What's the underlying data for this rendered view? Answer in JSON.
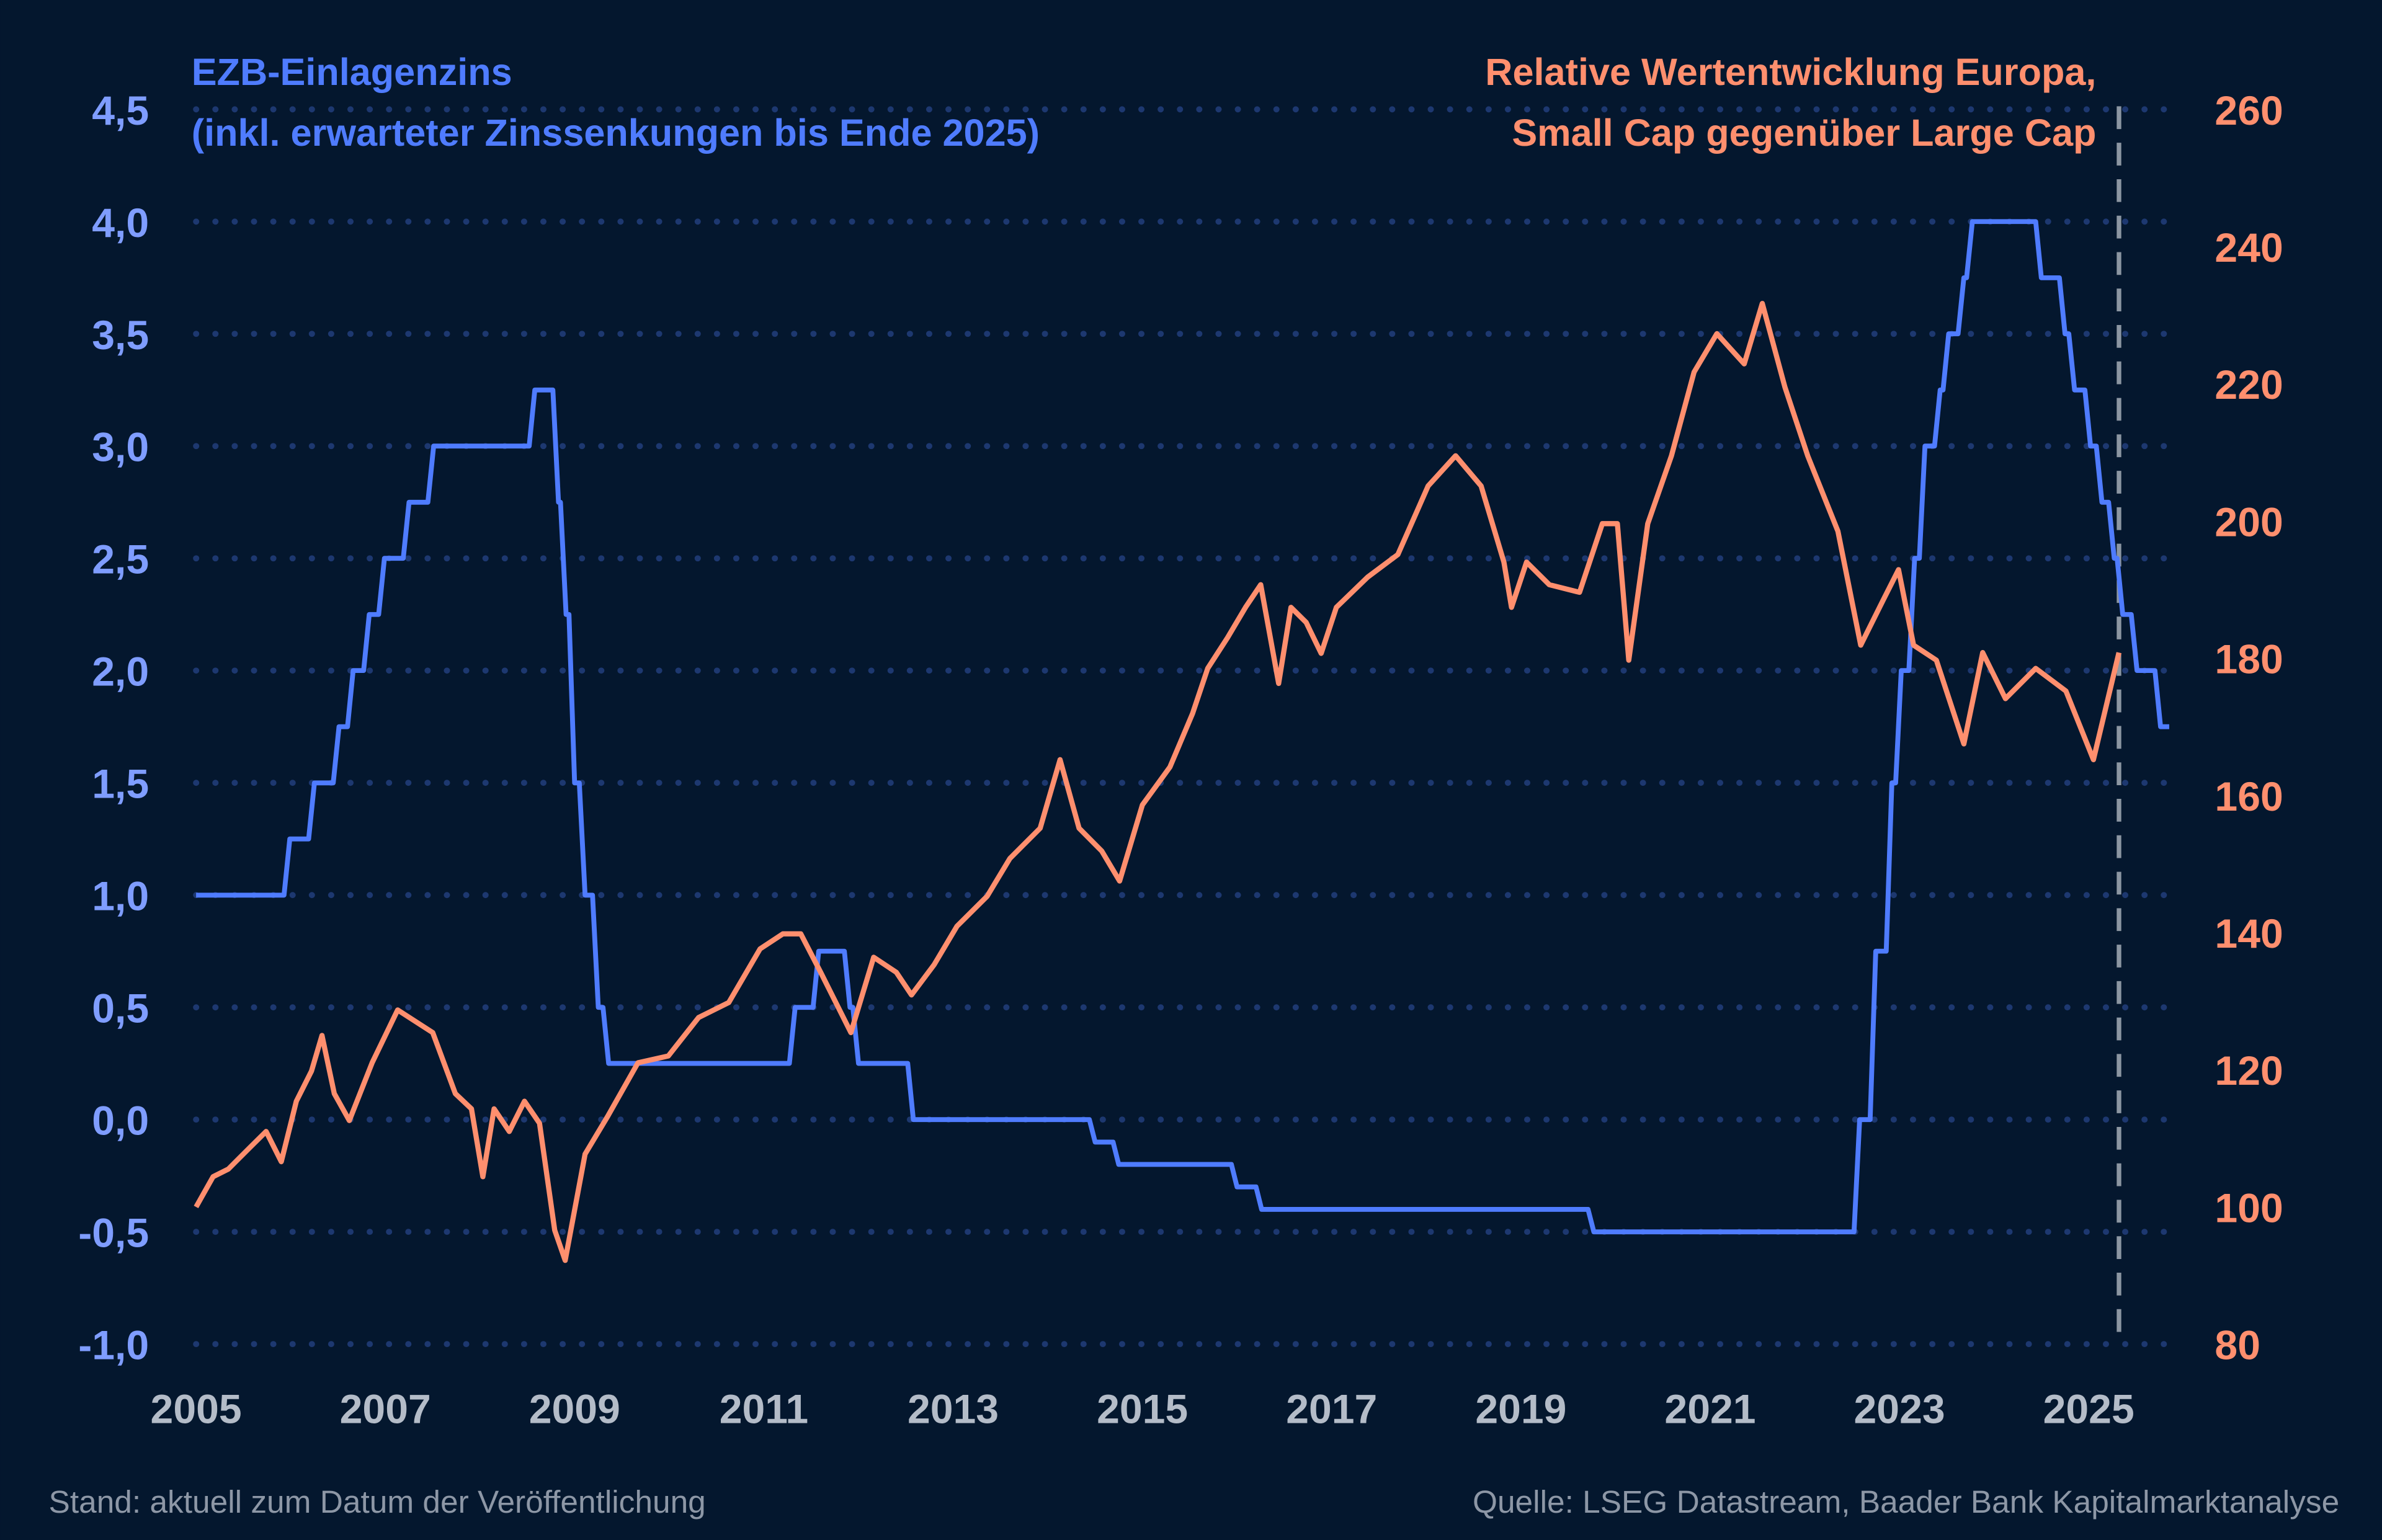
{
  "chart_data": {
    "type": "line",
    "title_left": [
      "EZB-Einlagenzins",
      "(inkl. erwarteter Zinssenkungen bis Ende 2025)"
    ],
    "title_right": [
      "Relative Wertentwicklung Europa,",
      "Small Cap gegenüber Large Cap"
    ],
    "x_ticks": [
      "2005",
      "2007",
      "2009",
      "2011",
      "2013",
      "2015",
      "2017",
      "2019",
      "2021",
      "2023",
      "2025"
    ],
    "xlim": [
      2005,
      2025.9
    ],
    "y_left": {
      "ticks": [
        "4,5",
        "4,0",
        "3,5",
        "3,0",
        "2,5",
        "2,0",
        "1,5",
        "1,0",
        "0,5",
        "0,0",
        "-0,5",
        "-1,0"
      ],
      "lim": [
        -1.0,
        4.5
      ]
    },
    "y_right": {
      "ticks": [
        "260",
        "240",
        "220",
        "200",
        "180",
        "160",
        "140",
        "120",
        "100",
        "80"
      ],
      "lim": [
        80,
        260
      ]
    },
    "grid": "dotted horizontal",
    "forecast_marker_x": 2025.32,
    "colors": {
      "rate": "#4f7cff",
      "relative": "#ff8f6e",
      "background": "#04172e",
      "marker": "#8c96a2"
    },
    "series": [
      {
        "name": "EZB-Einlagenzins",
        "axis": "left",
        "start": [
          2005.0,
          1.0
        ],
        "steps": [
          [
            2005.93,
            1.25
          ],
          [
            2006.19,
            1.5
          ],
          [
            2006.45,
            1.75
          ],
          [
            2006.6,
            2.0
          ],
          [
            2006.77,
            2.25
          ],
          [
            2006.93,
            2.5
          ],
          [
            2007.19,
            2.75
          ],
          [
            2007.45,
            3.0
          ],
          [
            2008.52,
            3.25
          ],
          [
            2008.77,
            2.75
          ],
          [
            2008.85,
            2.25
          ],
          [
            2008.94,
            1.5
          ],
          [
            2009.05,
            1.0
          ],
          [
            2009.19,
            0.5
          ],
          [
            2009.3,
            0.25
          ],
          [
            2011.27,
            0.5
          ],
          [
            2011.52,
            0.75
          ],
          [
            2011.85,
            0.5
          ],
          [
            2011.94,
            0.25
          ],
          [
            2012.52,
            0.0
          ],
          [
            2014.44,
            -0.1
          ],
          [
            2014.69,
            -0.2
          ],
          [
            2015.94,
            -0.3
          ],
          [
            2016.2,
            -0.4
          ],
          [
            2019.71,
            -0.5
          ],
          [
            2022.52,
            0.0
          ],
          [
            2022.69,
            0.75
          ],
          [
            2022.86,
            1.5
          ],
          [
            2022.96,
            2.0
          ],
          [
            2023.1,
            2.5
          ],
          [
            2023.21,
            3.0
          ],
          [
            2023.37,
            3.25
          ],
          [
            2023.46,
            3.5
          ],
          [
            2023.62,
            3.75
          ],
          [
            2023.71,
            4.0
          ],
          [
            2024.44,
            3.75
          ],
          [
            2024.69,
            3.5
          ],
          [
            2024.79,
            3.25
          ],
          [
            2024.96,
            3.0
          ],
          [
            2025.08,
            2.75
          ],
          [
            2025.21,
            2.5
          ],
          [
            2025.3,
            2.25
          ],
          [
            2025.45,
            2.0
          ],
          [
            2025.7,
            1.75
          ]
        ],
        "end": [
          2025.85,
          1.75
        ]
      },
      {
        "name": "Relative Wertentwicklung Europa, Small Cap gegenüber Large Cap",
        "axis": "right",
        "points": [
          [
            2005.0,
            100
          ],
          [
            2005.18,
            104.4
          ],
          [
            2005.34,
            105.5
          ],
          [
            2005.58,
            108.8
          ],
          [
            2005.74,
            111
          ],
          [
            2005.9,
            106.6
          ],
          [
            2006.06,
            115.4
          ],
          [
            2006.22,
            119.8
          ],
          [
            2006.33,
            125
          ],
          [
            2006.46,
            116.5
          ],
          [
            2006.62,
            112.6
          ],
          [
            2006.86,
            121
          ],
          [
            2007.13,
            128.7
          ],
          [
            2007.5,
            125.4
          ],
          [
            2007.74,
            116.5
          ],
          [
            2007.91,
            114.3
          ],
          [
            2008.03,
            104.4
          ],
          [
            2008.15,
            114.3
          ],
          [
            2008.31,
            111
          ],
          [
            2008.47,
            115.4
          ],
          [
            2008.63,
            112.2
          ],
          [
            2008.79,
            96.6
          ],
          [
            2008.9,
            92.2
          ],
          [
            2009.11,
            107.7
          ],
          [
            2009.35,
            113.2
          ],
          [
            2009.67,
            121
          ],
          [
            2009.99,
            122
          ],
          [
            2010.31,
            127.6
          ],
          [
            2010.63,
            129.8
          ],
          [
            2010.96,
            137.6
          ],
          [
            2011.2,
            139.8
          ],
          [
            2011.39,
            139.8
          ],
          [
            2011.6,
            134.2
          ],
          [
            2011.92,
            125.4
          ],
          [
            2012.16,
            136.4
          ],
          [
            2012.4,
            134.2
          ],
          [
            2012.56,
            130.9
          ],
          [
            2012.8,
            135.3
          ],
          [
            2013.04,
            140.9
          ],
          [
            2013.36,
            145.3
          ],
          [
            2013.6,
            150.8
          ],
          [
            2013.92,
            155.2
          ],
          [
            2014.13,
            165.2
          ],
          [
            2014.33,
            155.2
          ],
          [
            2014.57,
            151.9
          ],
          [
            2014.76,
            147.5
          ],
          [
            2015.0,
            158.6
          ],
          [
            2015.29,
            164.1
          ],
          [
            2015.53,
            171.9
          ],
          [
            2015.69,
            178.5
          ],
          [
            2015.9,
            183
          ],
          [
            2016.09,
            187.4
          ],
          [
            2016.25,
            190.7
          ],
          [
            2016.44,
            176.3
          ],
          [
            2016.57,
            187.4
          ],
          [
            2016.73,
            185.2
          ],
          [
            2016.89,
            180.7
          ],
          [
            2017.05,
            187.4
          ],
          [
            2017.38,
            191.8
          ],
          [
            2017.7,
            195.1
          ],
          [
            2018.02,
            205.1
          ],
          [
            2018.31,
            209.5
          ],
          [
            2018.58,
            205.1
          ],
          [
            2018.82,
            194
          ],
          [
            2018.9,
            187.4
          ],
          [
            2019.06,
            194
          ],
          [
            2019.3,
            190.7
          ],
          [
            2019.62,
            189.6
          ],
          [
            2019.86,
            199.6
          ],
          [
            2020.02,
            199.6
          ],
          [
            2020.14,
            179.7
          ],
          [
            2020.34,
            199.6
          ],
          [
            2020.59,
            209.5
          ],
          [
            2020.83,
            221.7
          ],
          [
            2021.07,
            227.3
          ],
          [
            2021.36,
            222.9
          ],
          [
            2021.55,
            231.7
          ],
          [
            2021.79,
            219.5
          ],
          [
            2022.03,
            209.5
          ],
          [
            2022.35,
            198.5
          ],
          [
            2022.59,
            181.9
          ],
          [
            2022.83,
            188.5
          ],
          [
            2022.99,
            192.9
          ],
          [
            2023.15,
            181.9
          ],
          [
            2023.39,
            179.7
          ],
          [
            2023.68,
            167.5
          ],
          [
            2023.88,
            180.8
          ],
          [
            2024.12,
            174.1
          ],
          [
            2024.44,
            178.5
          ],
          [
            2024.76,
            175.2
          ],
          [
            2025.05,
            165.2
          ],
          [
            2025.32,
            180.8
          ]
        ]
      }
    ]
  },
  "footer": {
    "left": "Stand: aktuell zum Datum der Veröffentlichung",
    "right": "Quelle: LSEG Datastream, Baader Bank Kapitalmarktanalyse"
  }
}
